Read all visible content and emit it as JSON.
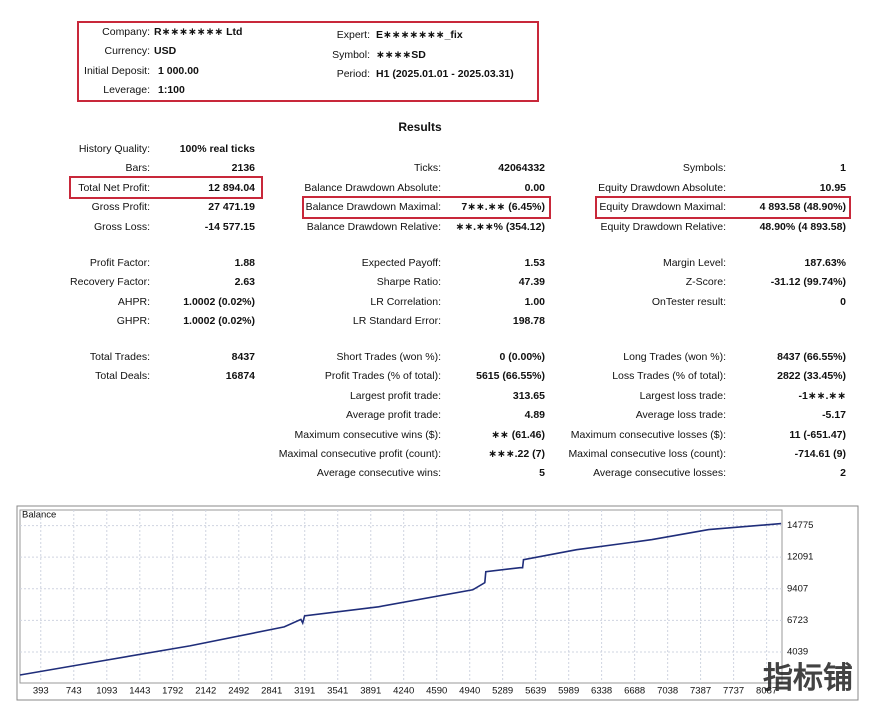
{
  "header": {
    "fields": [
      {
        "label": "Company:",
        "value": "R∗∗∗∗∗∗∗ Ltd"
      },
      {
        "label": "Currency:",
        "value": "USD"
      },
      {
        "label": "Initial Deposit:",
        "value": "1 000.00"
      },
      {
        "label": "Leverage:",
        "value": "1:100"
      },
      {
        "label": "Expert:",
        "value": "E∗∗∗∗∗∗∗_fix"
      },
      {
        "label": "Symbol:",
        "value": "∗∗∗∗SD"
      },
      {
        "label": "Period:",
        "value": "H1 (2025.01.01 - 2025.03.31)"
      }
    ]
  },
  "results": {
    "title": "Results",
    "rows": [
      {
        "left": {
          "label": "History Quality:",
          "value": "100% real ticks"
        }
      },
      {
        "left": {
          "label": "Bars:",
          "value": "2136"
        },
        "middle": {
          "label": "Ticks:",
          "value": "42064332"
        },
        "right": {
          "label": "Symbols:",
          "value": "1"
        }
      },
      {
        "left": {
          "label": "Total Net Profit:",
          "value": "12 894.04"
        },
        "middle": {
          "label": "Balance Drawdown Absolute:",
          "value": "0.00"
        },
        "right": {
          "label": "Equity Drawdown Absolute:",
          "value": "10.95"
        }
      },
      {
        "left": {
          "label": "Gross Profit:",
          "value": "27 471.19"
        },
        "middle": {
          "label": "Balance Drawdown Maximal:",
          "value": "7∗∗.∗∗ (6.45%)"
        },
        "right": {
          "label": "Equity Drawdown Maximal:",
          "value": "4 893.58 (48.90%)"
        }
      },
      {
        "left": {
          "label": "Gross Loss:",
          "value": "-14 577.15"
        },
        "middle": {
          "label": "Balance Drawdown Relative:",
          "value": "∗∗.∗∗% (354.12)"
        },
        "right": {
          "label": "Equity Drawdown Relative:",
          "value": "48.90% (4 893.58)"
        }
      },
      {
        "left": {
          "label": "Profit Factor:",
          "value": "1.88"
        },
        "middle": {
          "label": "Expected Payoff:",
          "value": "1.53"
        },
        "right": {
          "label": "Margin Level:",
          "value": "187.63%"
        }
      },
      {
        "left": {
          "label": "Recovery Factor:",
          "value": "2.63"
        },
        "middle": {
          "label": "Sharpe Ratio:",
          "value": "47.39"
        },
        "right": {
          "label": "Z-Score:",
          "value": "-31.12 (99.74%)"
        }
      },
      {
        "left": {
          "label": "AHPR:",
          "value": "1.0002 (0.02%)"
        },
        "middle": {
          "label": "LR Correlation:",
          "value": "1.00"
        },
        "right": {
          "label": "OnTester result:",
          "value": "0"
        }
      },
      {
        "left": {
          "label": "GHPR:",
          "value": "1.0002 (0.02%)"
        },
        "middle": {
          "label": "LR Standard Error:",
          "value": "198.78"
        }
      },
      {
        "left": {
          "label": "Total Trades:",
          "value": "8437"
        },
        "middle": {
          "label": "Short Trades (won %):",
          "value": "0 (0.00%)"
        },
        "right": {
          "label": "Long Trades (won %):",
          "value": "8437 (66.55%)"
        }
      },
      {
        "left": {
          "label": "Total Deals:",
          "value": "16874"
        },
        "middle": {
          "label": "Profit Trades (% of total):",
          "value": "5615 (66.55%)"
        },
        "right": {
          "label": "Loss Trades (% of total):",
          "value": "2822 (33.45%)"
        }
      },
      {
        "middle": {
          "label": "Largest profit trade:",
          "value": "313.65"
        },
        "right": {
          "label": "Largest loss trade:",
          "value": "-1∗∗.∗∗"
        }
      },
      {
        "middle": {
          "label": "Average profit trade:",
          "value": "4.89"
        },
        "right": {
          "label": "Average loss trade:",
          "value": "-5.17"
        }
      },
      {
        "middle": {
          "label": "Maximum consecutive wins ($):",
          "value": "∗∗ (61.46)"
        },
        "right": {
          "label": "Maximum consecutive losses ($):",
          "value": "11 (-651.47)"
        }
      },
      {
        "middle": {
          "label": "Maximal consecutive profit (count):",
          "value": "∗∗∗.22 (7)"
        },
        "right": {
          "label": "Maximal consecutive loss (count):",
          "value": "-714.61 (9)"
        }
      },
      {
        "middle": {
          "label": "Average consecutive wins:",
          "value": "5"
        },
        "right": {
          "label": "Average consecutive losses:",
          "value": "2"
        }
      }
    ]
  },
  "chart_data": {
    "type": "line",
    "title": "Balance",
    "x": [
      173,
      973,
      1973,
      2973,
      3150,
      3170,
      3190,
      3973,
      4973,
      5100,
      5110,
      5473,
      5500,
      5510,
      6073,
      6873,
      7473,
      8240
    ],
    "series": [
      {
        "name": "Balance",
        "color": "#1f2d7a",
        "values": [
          2080,
          3188,
          4551,
          6170,
          6800,
          6500,
          7107,
          7874,
          9322,
          9919,
          10856,
          11197,
          11197,
          11878,
          12730,
          13582,
          14434,
          14945
        ]
      }
    ],
    "xlim": [
      173,
      8250
    ],
    "ylim": [
      1400,
      16100
    ],
    "xticks": [
      393,
      743,
      1093,
      1443,
      1792,
      2142,
      2492,
      2841,
      3191,
      3541,
      3891,
      4240,
      4590,
      4940,
      5289,
      5639,
      5989,
      6338,
      6688,
      7038,
      7387,
      7737,
      8087
    ],
    "yticks": [
      4039,
      6723,
      9407,
      12091,
      14775
    ],
    "grid": true
  },
  "watermark": "指标铺"
}
